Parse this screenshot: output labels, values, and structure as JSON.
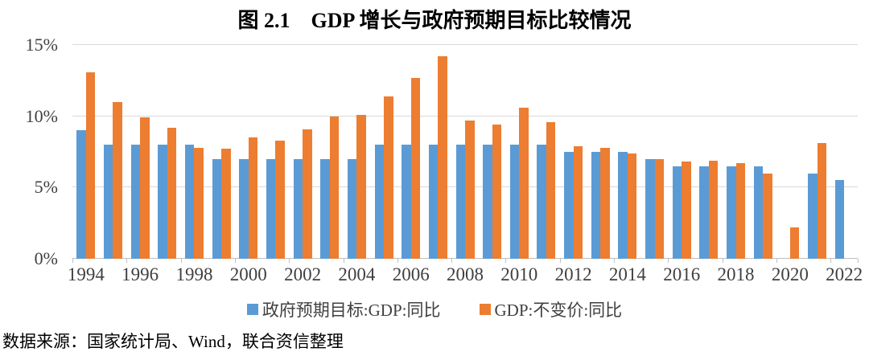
{
  "title": "图 2.1　GDP 增长与政府预期目标比较情况",
  "source_note": "数据来源：国家统计局、Wind，联合资信整理",
  "colors": {
    "target_series": "#5B9BD5",
    "actual_series": "#ED7D31",
    "gridline": "#D9D9D9",
    "axis_line": "#BFBFBF"
  },
  "chart_data": {
    "type": "bar",
    "title": "图 2.1　GDP 增长与政府预期目标比较情况",
    "categories": [
      1994,
      1995,
      1996,
      1997,
      1998,
      1999,
      2000,
      2001,
      2002,
      2003,
      2004,
      2005,
      2006,
      2007,
      2008,
      2009,
      2010,
      2011,
      2012,
      2013,
      2014,
      2015,
      2016,
      2017,
      2018,
      2019,
      2020,
      2021,
      2022
    ],
    "series": [
      {
        "name": "政府预期目标:GDP:同比",
        "color": "#5B9BD5",
        "values": [
          9,
          8,
          8,
          8,
          8,
          7,
          7,
          7,
          7,
          7,
          7,
          8,
          8,
          8,
          8,
          8,
          8,
          8,
          7.5,
          7.5,
          7.5,
          7,
          6.5,
          6.5,
          6.5,
          6.5,
          null,
          6,
          5.5
        ]
      },
      {
        "name": "GDP:不变价:同比",
        "color": "#ED7D31",
        "values": [
          13.1,
          11,
          9.9,
          9.2,
          7.8,
          7.7,
          8.5,
          8.3,
          9.1,
          10,
          10.1,
          11.4,
          12.7,
          14.2,
          9.7,
          9.4,
          10.6,
          9.6,
          7.9,
          7.8,
          7.4,
          7,
          6.8,
          6.9,
          6.7,
          6,
          2.2,
          8.1,
          null
        ]
      }
    ],
    "xlabel": "",
    "ylabel": "",
    "ylim": [
      0,
      15
    ],
    "ytick_interval": 5,
    "ytick_labels": [
      "0%",
      "5%",
      "10%",
      "15%"
    ],
    "xtick_labels": [
      "1994",
      "1996",
      "1998",
      "2000",
      "2002",
      "2004",
      "2006",
      "2008",
      "2010",
      "2012",
      "2014",
      "2016",
      "2018",
      "2020",
      "2022"
    ],
    "xtick_label_interval": 2,
    "grid": true,
    "legend_position": "bottom"
  }
}
